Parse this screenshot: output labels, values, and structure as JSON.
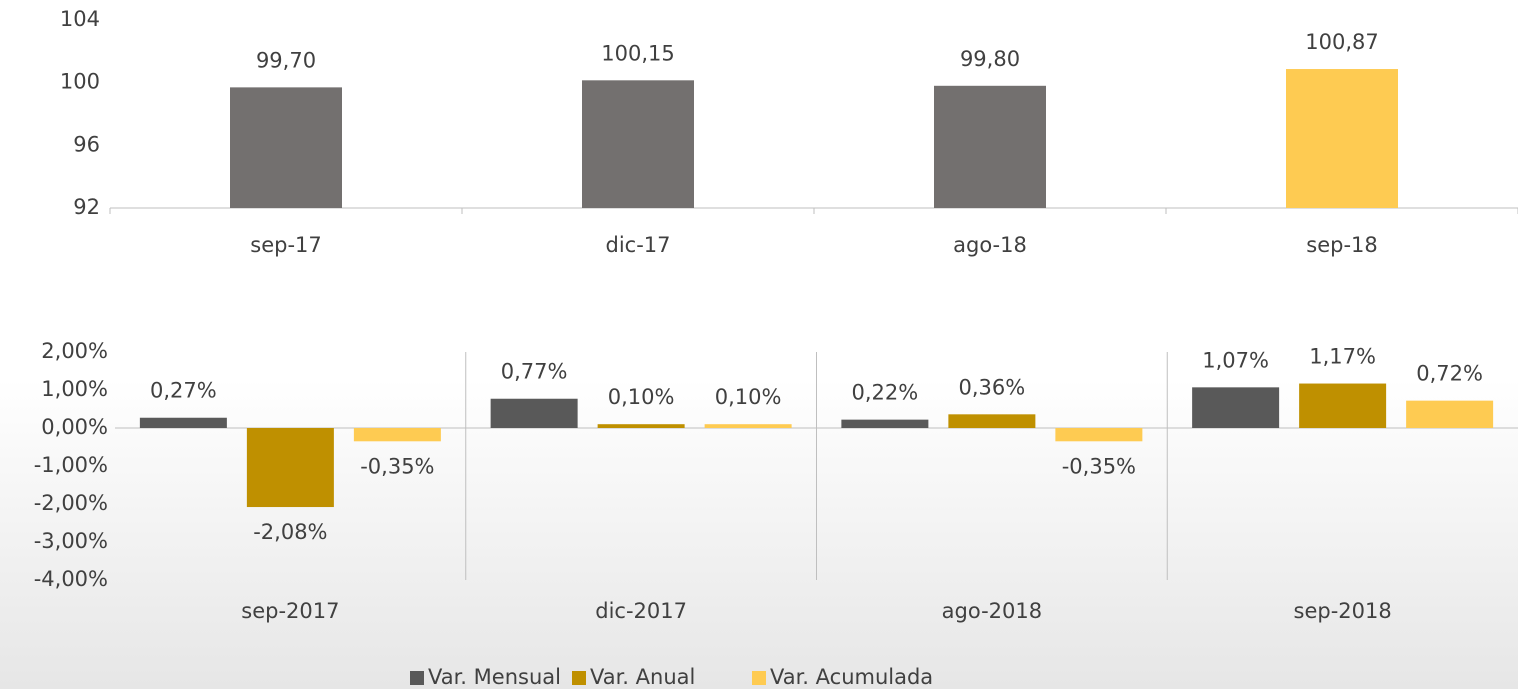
{
  "chart_data": [
    {
      "type": "bar",
      "categories": [
        "sep-17",
        "dic-17",
        "ago-18",
        "sep-18"
      ],
      "values": [
        99.7,
        100.15,
        99.8,
        100.87
      ],
      "value_labels": [
        "99,70",
        "100,15",
        "99,80",
        "100,87"
      ],
      "colors": [
        "#73706f",
        "#73706f",
        "#73706f",
        "#fecb52"
      ],
      "ylim": [
        92,
        104
      ],
      "yticks": [
        92,
        96,
        100,
        104
      ],
      "grid": false
    },
    {
      "type": "bar",
      "categories": [
        "sep-2017",
        "dic-2017",
        "ago-2018",
        "sep-2018"
      ],
      "series": [
        {
          "name": "Var. Mensual",
          "color": "#595959",
          "values": [
            0.27,
            0.77,
            0.22,
            1.07
          ],
          "value_labels": [
            "0,27%",
            "0,77%",
            "0,22%",
            "1,07%"
          ]
        },
        {
          "name": "Var. Anual",
          "color": "#bf9000",
          "values": [
            -2.08,
            0.1,
            0.36,
            1.17
          ],
          "value_labels": [
            "-2,08%",
            "0,10%",
            "0,36%",
            "1,17%"
          ]
        },
        {
          "name": "Var. Acumulada",
          "color": "#fecb52",
          "values": [
            -0.35,
            0.1,
            -0.35,
            0.72
          ],
          "value_labels": [
            "-0,35%",
            "0,10%",
            "-0,35%",
            "0,72%"
          ]
        }
      ],
      "ylim": [
        -4,
        2
      ],
      "yticks": [
        {
          "value": -4,
          "label": "-4,00%"
        },
        {
          "value": -3,
          "label": "-3,00%"
        },
        {
          "value": -2,
          "label": "-2,00%"
        },
        {
          "value": -1,
          "label": "-1,00%"
        },
        {
          "value": 0,
          "label": "0,00%"
        },
        {
          "value": 1,
          "label": "1,00%"
        },
        {
          "value": 2,
          "label": "2,00%"
        }
      ],
      "grid": false,
      "legend": "bottom"
    }
  ]
}
